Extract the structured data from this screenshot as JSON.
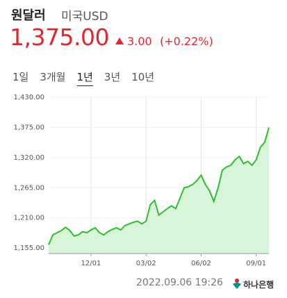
{
  "header": {
    "title": "원달러",
    "subtitle": "미국USD",
    "price": "1,375.00",
    "change": "3.00",
    "change_percent": "(+0.22%)"
  },
  "tabs": [
    "1일",
    "3개월",
    "1년",
    "3년",
    "10년"
  ],
  "chart_data": {
    "type": "area",
    "color": "#2dbe2d",
    "fill": "#d9f5d9",
    "grid": true,
    "categories": [
      null,
      null,
      null,
      null,
      null,
      null,
      null,
      null,
      null,
      null,
      "12/01",
      null,
      null,
      null,
      null,
      null,
      null,
      null,
      null,
      null,
      null,
      null,
      null,
      "03/02",
      null,
      null,
      null,
      null,
      null,
      null,
      null,
      null,
      null,
      null,
      null,
      null,
      "06/02",
      null,
      null,
      null,
      null,
      null,
      null,
      null,
      null,
      null,
      null,
      null,
      null,
      "09/01",
      null,
      null,
      null
    ],
    "values": [
      1161,
      1179,
      1183,
      1187,
      1193,
      1187,
      1177,
      1179,
      1185,
      1183,
      1188,
      1192,
      1183,
      1179,
      1185,
      1189,
      1192,
      1188,
      1196,
      1199,
      1202,
      1204,
      1199,
      1204,
      1234,
      1242,
      1215,
      1221,
      1227,
      1232,
      1227,
      1246,
      1265,
      1267,
      1271,
      1278,
      1288,
      1271,
      1259,
      1240,
      1265,
      1297,
      1303,
      1306,
      1316,
      1322,
      1309,
      1313,
      1306,
      1316,
      1339,
      1348,
      1375
    ],
    "ylim": [
      1145,
      1430
    ],
    "yticks": [
      {
        "value": 1155,
        "label": "1,155.00"
      },
      {
        "value": 1210,
        "label": "1,210.00"
      },
      {
        "value": 1265,
        "label": "1,265.00"
      },
      {
        "value": 1320,
        "label": "1,320.00"
      },
      {
        "value": 1375,
        "label": "1,375.00"
      },
      {
        "value": 1430,
        "label": "1,430.00"
      }
    ]
  },
  "footer": {
    "timestamp": "2022.09.06 19:26",
    "bank": "하나은행"
  }
}
